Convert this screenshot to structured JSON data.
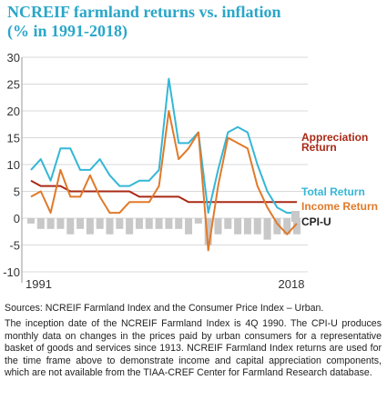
{
  "title": "NCREIF farmland returns vs. inflation",
  "subtitle": "(% in 1991-2018)",
  "colors": {
    "title": "#2aa6c9",
    "appreciation": "#a82a16",
    "total": "#35b7d6",
    "income": "#e07a2a",
    "cpi": "#c8c8c8",
    "grid": "#d9d9d9"
  },
  "chart_data": {
    "type": "line",
    "x": [
      1991,
      1992,
      1993,
      1994,
      1995,
      1996,
      1997,
      1998,
      1999,
      2000,
      2001,
      2002,
      2003,
      2004,
      2005,
      2006,
      2007,
      2008,
      2009,
      2010,
      2011,
      2012,
      2013,
      2014,
      2015,
      2016,
      2017,
      2018
    ],
    "x_tick_labels": [
      "1991",
      "2018"
    ],
    "ylim": [
      -10,
      30
    ],
    "yticks": [
      30,
      25,
      20,
      15,
      10,
      5,
      0,
      -5,
      -10
    ],
    "grid": true,
    "legend_placement": "right",
    "series": [
      {
        "name": "Appreciation Return",
        "type": "line",
        "color": "#a82a16",
        "values": [
          7,
          6,
          6,
          6,
          5,
          5,
          5,
          5,
          5,
          5,
          5,
          4,
          4,
          4,
          4,
          4,
          3,
          3,
          3,
          3,
          3,
          3,
          3,
          3,
          3,
          3,
          3,
          3
        ]
      },
      {
        "name": "Total Return",
        "type": "line",
        "color": "#35b7d6",
        "values": [
          9,
          11,
          7,
          13,
          13,
          9,
          9,
          11,
          8,
          6,
          6,
          7,
          7,
          9,
          26,
          14,
          14,
          16,
          1,
          9,
          16,
          17,
          16,
          10,
          5,
          2,
          1,
          1
        ]
      },
      {
        "name": "Income Return",
        "type": "line",
        "color": "#e07a2a",
        "values": [
          4,
          5,
          1,
          9,
          4,
          4,
          8,
          4,
          1,
          1,
          3,
          3,
          3,
          6,
          20,
          11,
          13,
          16,
          -6,
          6,
          15,
          14,
          13,
          6,
          2,
          -1,
          -3,
          -1
        ]
      },
      {
        "name": "CPI-U",
        "type": "bar",
        "color": "#c8c8c8",
        "values": [
          -1,
          -2,
          -2,
          -2,
          -3,
          -2,
          -3,
          -2,
          -3,
          -2,
          -3,
          -2,
          -2,
          -2,
          -2,
          -2,
          -3,
          -1,
          -5,
          -3,
          -2,
          -3,
          -3,
          -3,
          -4,
          -3,
          -3,
          -3
        ]
      }
    ]
  },
  "sources_text": "Sources: NCREIF Farmland Index and the Consumer Price Index – Urban.",
  "note_text": "The inception date of the NCREIF Farmland Index is 4Q 1990. The CPI-U produces monthly data on changes in the prices paid by urban consumers for a representative basket of goods and services since 1913. NCREIF Farmland Index returns are used for the time frame above to demonstrate income and capital appreciation components, which are not available from the TIAA-CREF Center for Farmland Research database."
}
